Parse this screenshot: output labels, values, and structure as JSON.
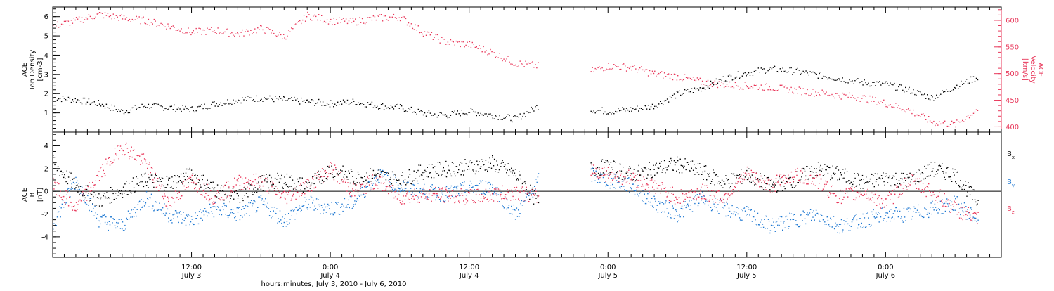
{
  "chart_data": [
    {
      "type": "scatter",
      "panel": "top",
      "ylabel_lines": [
        "ACE",
        "Ion Density",
        "[cm-3]"
      ],
      "ylabel_right_lines": [
        "ACE",
        "Velocity",
        "[km/s]"
      ],
      "ylim": [
        0,
        6.5
      ],
      "ylim_right": [
        390,
        625
      ],
      "yticks": [
        "1",
        "2",
        "3",
        "4",
        "5",
        "6"
      ],
      "yticks_right": [
        "400",
        "450",
        "500",
        "550",
        "600"
      ],
      "xlim_hours": [
        0,
        82
      ],
      "gap_hours": [
        [
          42.4,
          46.2
        ]
      ],
      "series": [
        {
          "axis": "left",
          "color": "#000000",
          "x": [
            0,
            2,
            4,
            6,
            8,
            10,
            12,
            14,
            16,
            18,
            20,
            22,
            24,
            26,
            28,
            30,
            32,
            34,
            36,
            38,
            40,
            42,
            46.5,
            48,
            50,
            52,
            54,
            56,
            58,
            60,
            62,
            64,
            66,
            68,
            70,
            72,
            74,
            76,
            78,
            80
          ],
          "y": [
            1.8,
            1.7,
            1.5,
            1.1,
            1.4,
            1.3,
            1.2,
            1.5,
            1.7,
            1.8,
            1.7,
            1.6,
            1.5,
            1.6,
            1.4,
            1.3,
            1.0,
            0.9,
            1.1,
            0.9,
            0.7,
            1.4,
            1.2,
            1.1,
            1.2,
            1.4,
            2.0,
            2.3,
            2.8,
            3.1,
            3.3,
            3.2,
            3.0,
            2.8,
            2.6,
            2.5,
            2.2,
            1.8,
            2.4,
            2.9
          ]
        },
        {
          "axis": "right",
          "color": "#e8375a",
          "x": [
            0,
            2,
            4,
            6,
            8,
            10,
            12,
            14,
            16,
            18,
            20,
            22,
            24,
            26,
            28,
            30,
            32,
            34,
            36,
            38,
            40,
            42,
            46.5,
            48,
            50,
            52,
            54,
            56,
            58,
            60,
            62,
            64,
            66,
            68,
            70,
            72,
            74,
            76,
            78,
            80
          ],
          "y": [
            590,
            600,
            612,
            605,
            600,
            590,
            578,
            582,
            575,
            585,
            570,
            610,
            600,
            598,
            605,
            607,
            578,
            560,
            555,
            540,
            520,
            515,
            505,
            515,
            512,
            500,
            495,
            485,
            480,
            478,
            475,
            470,
            465,
            460,
            455,
            445,
            432,
            410,
            405,
            435
          ]
        }
      ]
    },
    {
      "type": "scatter",
      "panel": "bottom",
      "ylabel_lines": [
        "ACE",
        "B",
        "[nT]"
      ],
      "ylim": [
        -5.8,
        5.2
      ],
      "yticks": [
        "-4",
        "-2",
        "0",
        "2",
        "4"
      ],
      "xlim_hours": [
        0,
        82
      ],
      "gap_hours": [
        [
          42.4,
          46.2
        ]
      ],
      "legend": [
        {
          "label": "B",
          "sub": "x",
          "color": "#000000"
        },
        {
          "label": "B",
          "sub": "y",
          "color": "#1e78d2"
        },
        {
          "label": "B",
          "sub": "z",
          "color": "#e8375a"
        }
      ],
      "series": [
        {
          "name": "Bx",
          "color": "#000000",
          "x": [
            0,
            2,
            4,
            6,
            8,
            10,
            12,
            14,
            16,
            18,
            20,
            22,
            24,
            26,
            28,
            30,
            32,
            34,
            36,
            38,
            40,
            42,
            46.5,
            48,
            50,
            52,
            54,
            56,
            58,
            60,
            62,
            64,
            66,
            68,
            70,
            72,
            74,
            76,
            78,
            80
          ],
          "y": [
            2.5,
            0.5,
            -0.8,
            0.2,
            1.0,
            0.8,
            1.5,
            0.2,
            -0.5,
            0.8,
            1.0,
            0.5,
            2.0,
            1.2,
            1.5,
            1.0,
            1.8,
            2.0,
            2.2,
            2.5,
            1.5,
            -1.0,
            2.0,
            2.2,
            1.5,
            2.0,
            2.4,
            1.8,
            0.8,
            1.5,
            0.5,
            1.0,
            2.0,
            1.5,
            0.8,
            1.2,
            1.0,
            2.0,
            1.5,
            -1.0
          ]
        },
        {
          "name": "By",
          "color": "#1e78d2",
          "x": [
            0,
            2,
            4,
            6,
            8,
            10,
            12,
            14,
            16,
            18,
            20,
            22,
            24,
            26,
            28,
            30,
            32,
            34,
            36,
            38,
            40,
            42,
            46.5,
            48,
            50,
            52,
            54,
            56,
            58,
            60,
            62,
            64,
            66,
            68,
            70,
            72,
            74,
            76,
            78,
            80
          ],
          "y": [
            -2.8,
            1.0,
            -2.5,
            -3.0,
            -0.5,
            -2.0,
            -2.5,
            -1.5,
            -2.0,
            -1.0,
            -2.5,
            -1.0,
            -1.5,
            -1.0,
            1.5,
            0.5,
            0.0,
            -0.2,
            0.3,
            0.5,
            -2.0,
            1.0,
            1.5,
            1.0,
            0.5,
            -1.0,
            -2.0,
            -0.5,
            -1.5,
            -2.0,
            -3.0,
            -2.5,
            -2.0,
            -3.0,
            -2.5,
            -2.0,
            -2.0,
            -1.5,
            -1.0,
            -2.5
          ]
        },
        {
          "name": "Bz",
          "color": "#e8375a",
          "x": [
            0,
            2,
            4,
            6,
            8,
            10,
            12,
            14,
            16,
            18,
            20,
            22,
            24,
            26,
            28,
            30,
            32,
            34,
            36,
            38,
            40,
            42,
            46.5,
            48,
            50,
            52,
            54,
            56,
            58,
            60,
            62,
            64,
            66,
            68,
            70,
            72,
            74,
            76,
            78,
            80
          ],
          "y": [
            0.5,
            -1.5,
            1.5,
            4.0,
            2.5,
            -1.0,
            1.0,
            -0.5,
            0.8,
            1.0,
            -0.5,
            0.5,
            2.0,
            0.0,
            1.0,
            -0.5,
            -0.2,
            -0.3,
            -0.5,
            -0.3,
            0.0,
            -0.5,
            2.0,
            1.5,
            1.2,
            0.5,
            -0.5,
            0.0,
            -0.5,
            1.5,
            0.5,
            1.5,
            1.0,
            -0.5,
            0.0,
            -1.0,
            1.0,
            0.0,
            -1.5,
            -2.5
          ]
        }
      ]
    }
  ],
  "x_axis": {
    "ticks": [
      {
        "hour": 12,
        "time": "12:00",
        "day": "July 3"
      },
      {
        "hour": 24,
        "time": "0:00",
        "day": "July 4"
      },
      {
        "hour": 36,
        "time": "12:00",
        "day": "July 4"
      },
      {
        "hour": 48,
        "time": "0:00",
        "day": "July 5"
      },
      {
        "hour": 60,
        "time": "12:00",
        "day": "July 5"
      },
      {
        "hour": 72,
        "time": "0:00",
        "day": "July 6"
      }
    ],
    "xlabel": "hours:minutes, July  3, 2010 - July  6, 2010"
  }
}
